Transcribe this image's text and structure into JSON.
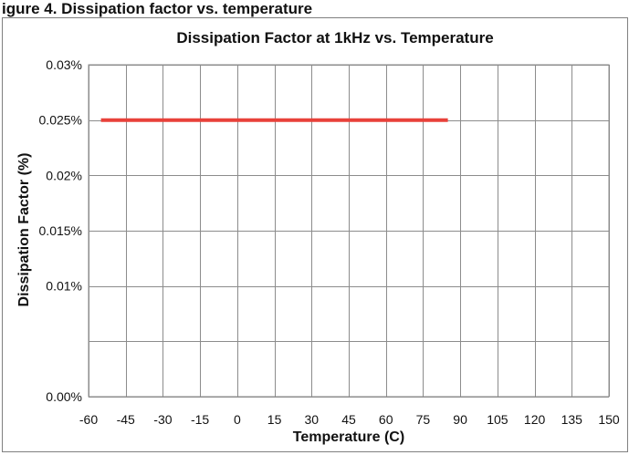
{
  "clipped_heading": "igure 4. Dissipation factor vs. temperature",
  "chart_data": {
    "type": "line",
    "title": "Dissipation Factor at 1kHz vs. Temperature",
    "xlabel": "Temperature (C)",
    "ylabel": "Dissipation Factor (%)",
    "xlim": [
      -60,
      150
    ],
    "ylim": [
      0,
      0.03
    ],
    "x_ticks": [
      -60,
      -45,
      -30,
      -15,
      0,
      15,
      30,
      45,
      60,
      75,
      90,
      105,
      120,
      135,
      150
    ],
    "x_tick_labels": [
      "-60",
      "-45",
      "-30",
      "-15",
      "0",
      "15",
      "30",
      "45",
      "60",
      "75",
      "90",
      "105",
      "120",
      "135",
      "150"
    ],
    "y_ticks": [
      0,
      0.005,
      0.01,
      0.015,
      0.02,
      0.025,
      0.03
    ],
    "y_tick_labels": [
      "0.00%",
      "",
      "0.01%",
      "0.015%",
      "0.02%",
      "0.025%",
      "0.03%"
    ],
    "grid": true,
    "legend": "none",
    "series": [
      {
        "color": "#e8413a",
        "x": [
          -55,
          85
        ],
        "y": [
          0.025,
          0.025
        ]
      }
    ]
  }
}
